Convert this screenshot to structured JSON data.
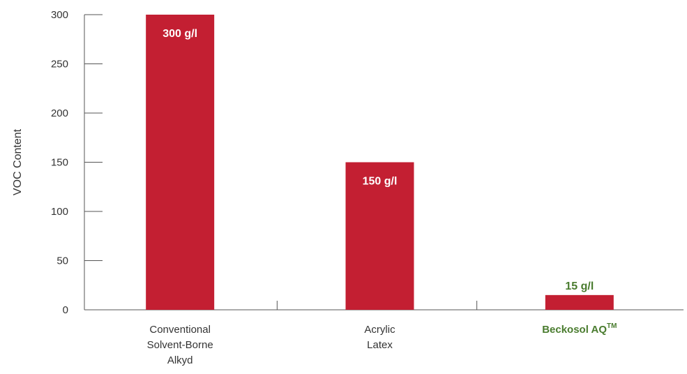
{
  "chart_data": {
    "type": "bar",
    "ylabel": "VOC Content",
    "ylim": [
      0,
      300
    ],
    "yticks": [
      0,
      50,
      100,
      150,
      200,
      250,
      300
    ],
    "grid": false,
    "categories": [
      {
        "lines": [
          "Conventional",
          "Solvent-Borne",
          "Alkyd"
        ],
        "highlight": false
      },
      {
        "lines": [
          "Acrylic",
          "Latex"
        ],
        "highlight": false
      },
      {
        "lines": [
          "Beckosol AQ"
        ],
        "sup": "TM",
        "highlight": true
      }
    ],
    "values": [
      300,
      150,
      15
    ],
    "data_labels": [
      "300 g/l",
      "150 g/l",
      "15 g/l"
    ],
    "colors": {
      "bar": "#c31f32",
      "label_inside": "#ffffff",
      "label_outside": "#4a7c2f",
      "axis": "#555555"
    }
  }
}
